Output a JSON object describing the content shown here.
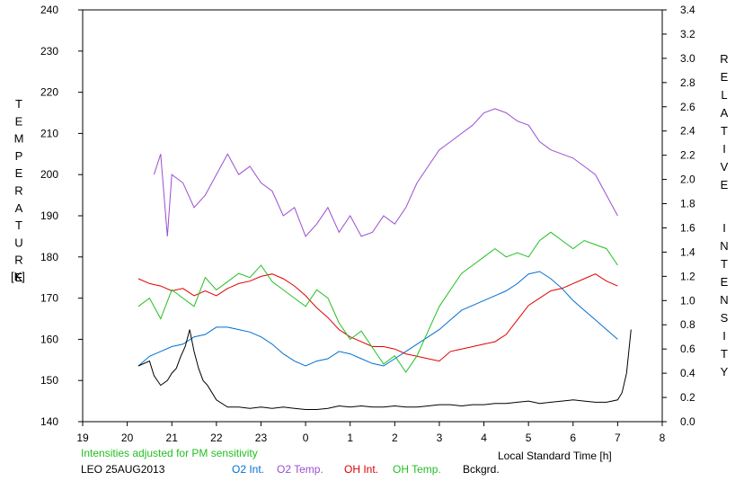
{
  "chart_data": {
    "type": "line",
    "left_axis_label": "TEMPERATURE",
    "left_axis_unit": "[K]",
    "right_axis_label": "RELATIVE INTENSITY",
    "xlabel": "Local Standard Time [h]",
    "note": "Intensities adjusted for PM sensitivity",
    "station_date": "LEO 25AUG2013",
    "x_ticks": [
      "19",
      "20",
      "21",
      "22",
      "23",
      "0",
      "1",
      "2",
      "3",
      "4",
      "5",
      "6",
      "7",
      "8"
    ],
    "x_range": [
      19,
      32
    ],
    "y_left_ticks": [
      140,
      150,
      160,
      170,
      180,
      190,
      200,
      210,
      220,
      230,
      240
    ],
    "y_left_range": [
      140,
      240
    ],
    "y_right_ticks": [
      "0.0",
      "0.2",
      "0.4",
      "0.6",
      "0.8",
      "1.0",
      "1.2",
      "1.4",
      "1.6",
      "1.8",
      "2.0",
      "2.2",
      "2.4",
      "2.6",
      "2.8",
      "3.0",
      "3.2",
      "3.4"
    ],
    "y_right_range": [
      0.0,
      3.4
    ],
    "series": [
      {
        "name": "O2 Int.",
        "axis": "right",
        "color": "#0070d0",
        "x": [
          20.25,
          20.5,
          20.75,
          21.0,
          21.25,
          21.5,
          21.75,
          22.0,
          22.25,
          22.5,
          22.75,
          23.0,
          23.25,
          23.5,
          23.75,
          24.0,
          24.25,
          24.5,
          24.75,
          25.0,
          25.25,
          25.5,
          25.75,
          26.0,
          26.25,
          26.5,
          26.75,
          27.0,
          27.25,
          27.5,
          27.75,
          28.0,
          28.25,
          28.5,
          28.75,
          29.0,
          29.25,
          29.5,
          29.75,
          30.0,
          30.25,
          30.5,
          30.75,
          31.0
        ],
        "y": [
          0.46,
          0.54,
          0.58,
          0.62,
          0.64,
          0.7,
          0.72,
          0.78,
          0.78,
          0.76,
          0.74,
          0.7,
          0.64,
          0.56,
          0.5,
          0.46,
          0.5,
          0.52,
          0.58,
          0.56,
          0.52,
          0.48,
          0.46,
          0.52,
          0.58,
          0.64,
          0.7,
          0.76,
          0.84,
          0.92,
          0.96,
          1.0,
          1.04,
          1.08,
          1.14,
          1.22,
          1.24,
          1.18,
          1.1,
          1.0,
          0.92,
          0.84,
          0.76,
          0.68
        ]
      },
      {
        "name": "O2 Temp.",
        "axis": "left",
        "color": "#9a4fd0",
        "x": [
          20.6,
          20.75,
          20.9,
          21.0,
          21.25,
          21.5,
          21.75,
          22.0,
          22.25,
          22.5,
          22.75,
          23.0,
          23.25,
          23.5,
          23.75,
          24.0,
          24.25,
          24.5,
          24.75,
          25.0,
          25.25,
          25.5,
          25.75,
          26.0,
          26.25,
          26.5,
          26.75,
          27.0,
          27.25,
          27.5,
          27.75,
          28.0,
          28.25,
          28.5,
          28.75,
          29.0,
          29.25,
          29.5,
          29.75,
          30.0,
          30.25,
          30.5,
          30.75,
          31.0
        ],
        "y": [
          200,
          205,
          185,
          200,
          198,
          192,
          195,
          200,
          205,
          200,
          202,
          198,
          196,
          190,
          192,
          185,
          188,
          192,
          186,
          190,
          185,
          186,
          190,
          188,
          192,
          198,
          202,
          206,
          208,
          210,
          212,
          215,
          216,
          215,
          213,
          212,
          208,
          206,
          205,
          204,
          202,
          200,
          195,
          190
        ]
      },
      {
        "name": "OH Int.",
        "axis": "right",
        "color": "#e00000",
        "x": [
          20.25,
          20.5,
          20.75,
          21.0,
          21.25,
          21.5,
          21.75,
          22.0,
          22.25,
          22.5,
          22.75,
          23.0,
          23.25,
          23.5,
          23.75,
          24.0,
          24.25,
          24.5,
          24.75,
          25.0,
          25.25,
          25.5,
          25.75,
          26.0,
          26.25,
          26.5,
          26.75,
          27.0,
          27.25,
          27.5,
          27.75,
          28.0,
          28.25,
          28.5,
          28.75,
          29.0,
          29.25,
          29.5,
          29.75,
          30.0,
          30.25,
          30.5,
          30.75,
          31.0
        ],
        "y": [
          1.18,
          1.14,
          1.12,
          1.08,
          1.1,
          1.04,
          1.08,
          1.04,
          1.1,
          1.14,
          1.16,
          1.2,
          1.22,
          1.18,
          1.12,
          1.04,
          0.94,
          0.86,
          0.76,
          0.7,
          0.66,
          0.62,
          0.62,
          0.6,
          0.56,
          0.54,
          0.52,
          0.5,
          0.58,
          0.6,
          0.62,
          0.64,
          0.66,
          0.72,
          0.84,
          0.96,
          1.02,
          1.08,
          1.1,
          1.14,
          1.18,
          1.22,
          1.16,
          1.12
        ]
      },
      {
        "name": "OH Temp.",
        "axis": "left",
        "color": "#22c022",
        "x": [
          20.25,
          20.5,
          20.75,
          21.0,
          21.25,
          21.5,
          21.75,
          22.0,
          22.25,
          22.5,
          22.75,
          23.0,
          23.25,
          23.5,
          23.75,
          24.0,
          24.25,
          24.5,
          24.75,
          25.0,
          25.25,
          25.5,
          25.75,
          26.0,
          26.25,
          26.5,
          26.75,
          27.0,
          27.25,
          27.5,
          27.75,
          28.0,
          28.25,
          28.5,
          28.75,
          29.0,
          29.25,
          29.5,
          29.75,
          30.0,
          30.25,
          30.5,
          30.75,
          31.0
        ],
        "y": [
          168,
          170,
          165,
          172,
          170,
          168,
          175,
          172,
          174,
          176,
          175,
          178,
          174,
          172,
          170,
          168,
          172,
          170,
          164,
          160,
          162,
          158,
          154,
          156,
          152,
          156,
          162,
          168,
          172,
          176,
          178,
          180,
          182,
          180,
          181,
          180,
          184,
          186,
          184,
          182,
          184,
          183,
          182,
          178
        ]
      },
      {
        "name": "Bckgrd.",
        "axis": "right",
        "color": "#000000",
        "x": [
          20.25,
          20.5,
          20.6,
          20.75,
          20.9,
          21.0,
          21.1,
          21.2,
          21.3,
          21.4,
          21.5,
          21.6,
          21.7,
          21.8,
          21.9,
          22.0,
          22.25,
          22.5,
          22.75,
          23.0,
          23.25,
          23.5,
          23.75,
          24.0,
          24.25,
          24.5,
          24.75,
          25.0,
          25.25,
          25.5,
          25.75,
          26.0,
          26.25,
          26.5,
          26.75,
          27.0,
          27.25,
          27.5,
          27.75,
          28.0,
          28.25,
          28.5,
          28.75,
          29.0,
          29.25,
          29.5,
          29.75,
          30.0,
          30.25,
          30.5,
          30.75,
          31.0,
          31.1,
          31.2,
          31.3
        ],
        "y": [
          0.46,
          0.5,
          0.38,
          0.3,
          0.34,
          0.4,
          0.44,
          0.54,
          0.62,
          0.76,
          0.58,
          0.44,
          0.34,
          0.3,
          0.24,
          0.18,
          0.12,
          0.12,
          0.11,
          0.12,
          0.11,
          0.12,
          0.11,
          0.1,
          0.1,
          0.11,
          0.13,
          0.12,
          0.13,
          0.12,
          0.12,
          0.13,
          0.12,
          0.12,
          0.13,
          0.14,
          0.14,
          0.13,
          0.14,
          0.14,
          0.15,
          0.15,
          0.16,
          0.17,
          0.15,
          0.16,
          0.17,
          0.18,
          0.17,
          0.16,
          0.16,
          0.18,
          0.24,
          0.4,
          0.76
        ]
      }
    ]
  }
}
